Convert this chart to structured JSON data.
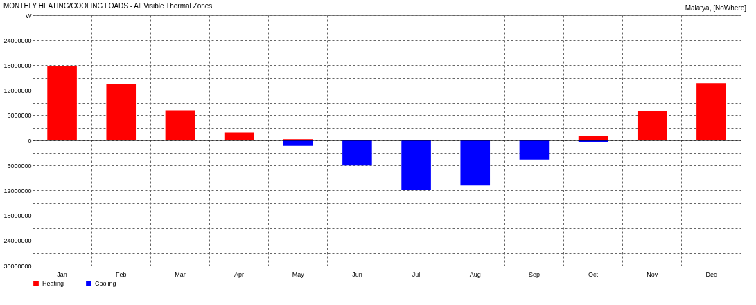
{
  "chart_data": {
    "type": "bar",
    "title": "MONTHLY HEATING/COOLING LOADS - All Visible Thermal Zones",
    "annotations": [
      "Malatya, [NoWhere]"
    ],
    "categories": [
      "Jan",
      "Feb",
      "Mar",
      "Apr",
      "May",
      "Jun",
      "Jul",
      "Aug",
      "Sep",
      "Oct",
      "Nov",
      "Dec"
    ],
    "series": [
      {
        "name": "Heating",
        "color": "#ff0000",
        "values": [
          17800000,
          13500000,
          7200000,
          1900000,
          300000,
          null,
          null,
          null,
          null,
          1100000,
          7000000,
          13700000
        ]
      },
      {
        "name": "Cooling",
        "color": "#0000ff",
        "values": [
          null,
          null,
          null,
          null,
          -1300000,
          -6000000,
          -11900000,
          -10800000,
          -4600000,
          -500000,
          null,
          null
        ]
      }
    ],
    "ylim": [
      -30000000,
      30000000
    ],
    "yticks": [
      {
        "value": -30000000,
        "label": "30000000"
      },
      {
        "value": -27000000,
        "label": null
      },
      {
        "value": -24000000,
        "label": "24000000"
      },
      {
        "value": -21000000,
        "label": null
      },
      {
        "value": -18000000,
        "label": "18000000"
      },
      {
        "value": -15000000,
        "label": null
      },
      {
        "value": -12000000,
        "label": "12000000"
      },
      {
        "value": -9000000,
        "label": null
      },
      {
        "value": -6000000,
        "label": "6000000"
      },
      {
        "value": -3000000,
        "label": null
      },
      0,
      {
        "value": 3000000,
        "label": null
      },
      6000000,
      {
        "value": 9000000,
        "label": null
      },
      12000000,
      {
        "value": 15000000,
        "label": null
      },
      18000000,
      {
        "value": 21000000,
        "label": null
      },
      24000000,
      {
        "value": 27000000,
        "label": null
      },
      {
        "value": 30000000,
        "label": "W"
      }
    ],
    "grid": true,
    "legend": "bottom left"
  }
}
